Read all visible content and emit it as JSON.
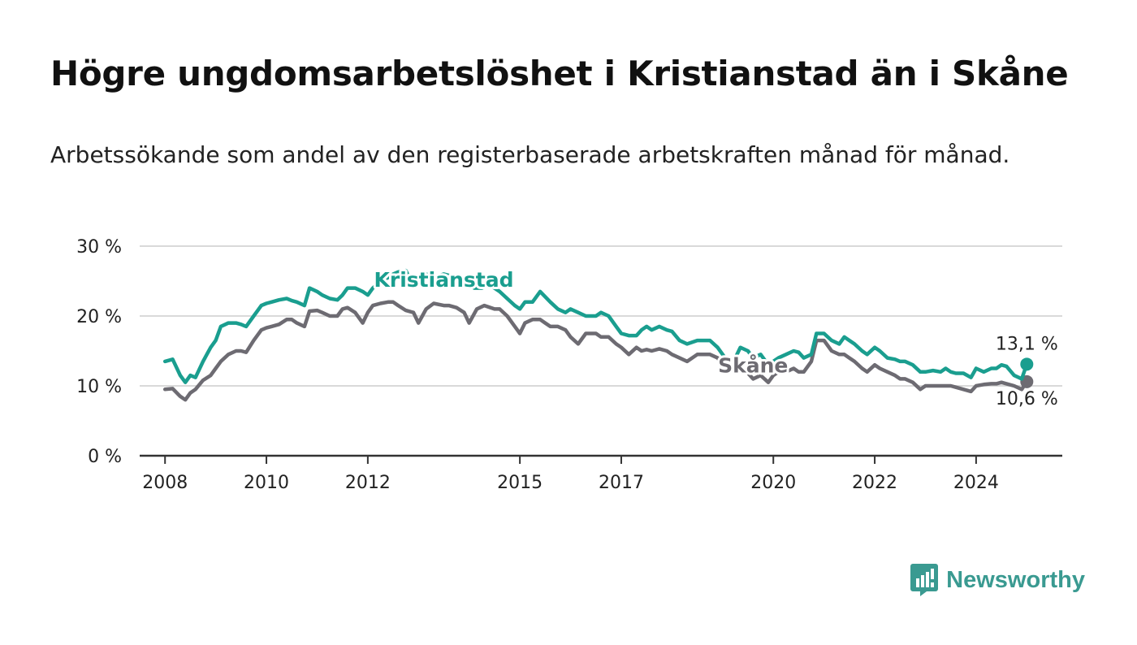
{
  "title": "Högre ungdomsarbetslöshet i Kristianstad än i Skåne",
  "subtitle": "Arbetssökande som andel av den registerbaserade arbetskraften månad för månad.",
  "logo": {
    "text": "Newsworthy",
    "icon": "bar-chart-speech-bubble-icon"
  },
  "colors": {
    "kristianstad": "#1a9e8f",
    "skane": "#6d6b72",
    "grid": "#d9d9d9",
    "axis": "#333333"
  },
  "chart_data": {
    "type": "line",
    "title": "Högre ungdomsarbetslöshet i Kristianstad än i Skåne",
    "subtitle": "Arbetssökande som andel av den registerbaserade arbetskraften månad för månad.",
    "xlabel": "",
    "ylabel": "",
    "x_range": [
      2007.5,
      2025.7
    ],
    "ylim": [
      0,
      30
    ],
    "y_ticks": [
      0,
      10,
      20,
      30
    ],
    "y_tick_labels": [
      "0 %",
      "10 %",
      "20 %",
      "30 %"
    ],
    "x_ticks": [
      2008,
      2010,
      2012,
      2015,
      2017,
      2020,
      2022,
      2024
    ],
    "x_tick_labels": [
      "2008",
      "2010",
      "2012",
      "2015",
      "2017",
      "2020",
      "2022",
      "2024"
    ],
    "grid": "horizontal",
    "legend": "inline labels",
    "series": [
      {
        "name": "Kristianstad",
        "color": "#1a9e8f",
        "end_label": "13,1 %",
        "points": [
          [
            2008.0,
            13.5
          ],
          [
            2008.15,
            13.8
          ],
          [
            2008.3,
            11.5
          ],
          [
            2008.4,
            10.5
          ],
          [
            2008.5,
            11.5
          ],
          [
            2008.6,
            11.2
          ],
          [
            2008.75,
            13.5
          ],
          [
            2008.9,
            15.5
          ],
          [
            2009.0,
            16.5
          ],
          [
            2009.1,
            18.5
          ],
          [
            2009.25,
            19.0
          ],
          [
            2009.4,
            19.0
          ],
          [
            2009.5,
            18.8
          ],
          [
            2009.6,
            18.5
          ],
          [
            2009.75,
            20.0
          ],
          [
            2009.9,
            21.5
          ],
          [
            2010.0,
            21.8
          ],
          [
            2010.1,
            22.0
          ],
          [
            2010.25,
            22.3
          ],
          [
            2010.4,
            22.5
          ],
          [
            2010.5,
            22.2
          ],
          [
            2010.6,
            22.0
          ],
          [
            2010.75,
            21.5
          ],
          [
            2010.85,
            24.0
          ],
          [
            2011.0,
            23.5
          ],
          [
            2011.1,
            23.0
          ],
          [
            2011.25,
            22.5
          ],
          [
            2011.4,
            22.3
          ],
          [
            2011.5,
            23.0
          ],
          [
            2011.6,
            24.0
          ],
          [
            2011.75,
            24.0
          ],
          [
            2011.9,
            23.5
          ],
          [
            2012.0,
            23.0
          ],
          [
            2012.1,
            24.0
          ],
          [
            2012.25,
            25.0
          ],
          [
            2012.4,
            25.5
          ],
          [
            2012.5,
            26.0
          ],
          [
            2012.6,
            26.3
          ],
          [
            2012.75,
            26.5
          ],
          [
            2012.85,
            25.0
          ],
          [
            2013.0,
            25.5
          ],
          [
            2013.15,
            26.0
          ],
          [
            2013.3,
            25.5
          ],
          [
            2013.5,
            26.0
          ],
          [
            2013.6,
            25.8
          ],
          [
            2013.75,
            25.5
          ],
          [
            2013.9,
            25.0
          ],
          [
            2014.0,
            24.5
          ],
          [
            2014.1,
            24.0
          ],
          [
            2014.25,
            24.0
          ],
          [
            2014.4,
            24.5
          ],
          [
            2014.5,
            24.0
          ],
          [
            2014.6,
            23.5
          ],
          [
            2014.75,
            22.5
          ],
          [
            2014.9,
            21.5
          ],
          [
            2015.0,
            21.0
          ],
          [
            2015.1,
            22.0
          ],
          [
            2015.25,
            22.0
          ],
          [
            2015.4,
            23.5
          ],
          [
            2015.6,
            22.0
          ],
          [
            2015.75,
            21.0
          ],
          [
            2015.9,
            20.5
          ],
          [
            2016.0,
            21.0
          ],
          [
            2016.15,
            20.5
          ],
          [
            2016.3,
            20.0
          ],
          [
            2016.5,
            20.0
          ],
          [
            2016.6,
            20.5
          ],
          [
            2016.75,
            20.0
          ],
          [
            2016.9,
            18.5
          ],
          [
            2017.0,
            17.5
          ],
          [
            2017.15,
            17.2
          ],
          [
            2017.3,
            17.2
          ],
          [
            2017.4,
            18.0
          ],
          [
            2017.5,
            18.5
          ],
          [
            2017.6,
            18.0
          ],
          [
            2017.75,
            18.5
          ],
          [
            2017.9,
            18.0
          ],
          [
            2018.0,
            17.8
          ],
          [
            2018.15,
            16.5
          ],
          [
            2018.3,
            16.0
          ],
          [
            2018.5,
            16.5
          ],
          [
            2018.6,
            16.5
          ],
          [
            2018.75,
            16.5
          ],
          [
            2018.9,
            15.5
          ],
          [
            2019.0,
            14.5
          ],
          [
            2019.1,
            13.5
          ],
          [
            2019.25,
            14.0
          ],
          [
            2019.35,
            15.5
          ],
          [
            2019.5,
            15.0
          ],
          [
            2019.6,
            14.0
          ],
          [
            2019.75,
            14.5
          ],
          [
            2019.9,
            13.0
          ],
          [
            2020.0,
            13.5
          ],
          [
            2020.1,
            14.0
          ],
          [
            2020.25,
            14.5
          ],
          [
            2020.4,
            15.0
          ],
          [
            2020.5,
            14.8
          ],
          [
            2020.6,
            14.0
          ],
          [
            2020.75,
            14.5
          ],
          [
            2020.85,
            17.5
          ],
          [
            2021.0,
            17.5
          ],
          [
            2021.15,
            16.5
          ],
          [
            2021.3,
            16.0
          ],
          [
            2021.4,
            17.0
          ],
          [
            2021.5,
            16.5
          ],
          [
            2021.6,
            16.0
          ],
          [
            2021.75,
            15.0
          ],
          [
            2021.85,
            14.5
          ],
          [
            2022.0,
            15.5
          ],
          [
            2022.1,
            15.0
          ],
          [
            2022.25,
            14.0
          ],
          [
            2022.4,
            13.8
          ],
          [
            2022.5,
            13.5
          ],
          [
            2022.6,
            13.5
          ],
          [
            2022.75,
            13.0
          ],
          [
            2022.9,
            12.0
          ],
          [
            2023.0,
            12.0
          ],
          [
            2023.15,
            12.2
          ],
          [
            2023.3,
            12.0
          ],
          [
            2023.4,
            12.5
          ],
          [
            2023.5,
            12.0
          ],
          [
            2023.6,
            11.8
          ],
          [
            2023.75,
            11.8
          ],
          [
            2023.9,
            11.2
          ],
          [
            2024.0,
            12.5
          ],
          [
            2024.15,
            12.0
          ],
          [
            2024.3,
            12.5
          ],
          [
            2024.4,
            12.5
          ],
          [
            2024.5,
            13.0
          ],
          [
            2024.6,
            12.8
          ],
          [
            2024.75,
            11.5
          ],
          [
            2024.9,
            11.0
          ],
          [
            2025.0,
            13.1
          ]
        ]
      },
      {
        "name": "Skåne",
        "color": "#6d6b72",
        "end_label": "10,6 %",
        "points": [
          [
            2008.0,
            9.5
          ],
          [
            2008.15,
            9.6
          ],
          [
            2008.3,
            8.5
          ],
          [
            2008.4,
            8.0
          ],
          [
            2008.5,
            9.0
          ],
          [
            2008.6,
            9.5
          ],
          [
            2008.75,
            10.8
          ],
          [
            2008.9,
            11.5
          ],
          [
            2009.0,
            12.5
          ],
          [
            2009.1,
            13.5
          ],
          [
            2009.25,
            14.5
          ],
          [
            2009.4,
            15.0
          ],
          [
            2009.5,
            15.0
          ],
          [
            2009.6,
            14.8
          ],
          [
            2009.75,
            16.5
          ],
          [
            2009.9,
            18.0
          ],
          [
            2010.0,
            18.3
          ],
          [
            2010.1,
            18.5
          ],
          [
            2010.25,
            18.8
          ],
          [
            2010.4,
            19.5
          ],
          [
            2010.5,
            19.5
          ],
          [
            2010.6,
            19.0
          ],
          [
            2010.75,
            18.5
          ],
          [
            2010.85,
            20.7
          ],
          [
            2011.0,
            20.8
          ],
          [
            2011.1,
            20.5
          ],
          [
            2011.25,
            20.0
          ],
          [
            2011.4,
            20.0
          ],
          [
            2011.5,
            21.0
          ],
          [
            2011.6,
            21.2
          ],
          [
            2011.75,
            20.5
          ],
          [
            2011.9,
            19.0
          ],
          [
            2012.0,
            20.5
          ],
          [
            2012.1,
            21.5
          ],
          [
            2012.25,
            21.8
          ],
          [
            2012.4,
            22.0
          ],
          [
            2012.5,
            22.0
          ],
          [
            2012.6,
            21.5
          ],
          [
            2012.75,
            20.8
          ],
          [
            2012.9,
            20.5
          ],
          [
            2013.0,
            19.0
          ],
          [
            2013.15,
            21.0
          ],
          [
            2013.3,
            21.8
          ],
          [
            2013.5,
            21.5
          ],
          [
            2013.6,
            21.5
          ],
          [
            2013.75,
            21.2
          ],
          [
            2013.9,
            20.5
          ],
          [
            2014.0,
            19.0
          ],
          [
            2014.15,
            21.0
          ],
          [
            2014.3,
            21.5
          ],
          [
            2014.5,
            21.0
          ],
          [
            2014.6,
            21.0
          ],
          [
            2014.75,
            20.0
          ],
          [
            2014.9,
            18.5
          ],
          [
            2015.0,
            17.5
          ],
          [
            2015.1,
            19.0
          ],
          [
            2015.25,
            19.5
          ],
          [
            2015.4,
            19.5
          ],
          [
            2015.5,
            19.0
          ],
          [
            2015.6,
            18.5
          ],
          [
            2015.75,
            18.5
          ],
          [
            2015.9,
            18.0
          ],
          [
            2016.0,
            17.0
          ],
          [
            2016.15,
            16.0
          ],
          [
            2016.3,
            17.5
          ],
          [
            2016.5,
            17.5
          ],
          [
            2016.6,
            17.0
          ],
          [
            2016.75,
            17.0
          ],
          [
            2016.9,
            16.0
          ],
          [
            2017.0,
            15.5
          ],
          [
            2017.15,
            14.5
          ],
          [
            2017.3,
            15.5
          ],
          [
            2017.4,
            15.0
          ],
          [
            2017.5,
            15.2
          ],
          [
            2017.6,
            15.0
          ],
          [
            2017.75,
            15.3
          ],
          [
            2017.9,
            15.0
          ],
          [
            2018.0,
            14.5
          ],
          [
            2018.15,
            14.0
          ],
          [
            2018.3,
            13.5
          ],
          [
            2018.5,
            14.5
          ],
          [
            2018.6,
            14.5
          ],
          [
            2018.75,
            14.5
          ],
          [
            2018.9,
            14.0
          ],
          [
            2019.0,
            13.0
          ],
          [
            2019.1,
            12.5
          ],
          [
            2019.25,
            12.5
          ],
          [
            2019.4,
            12.0
          ],
          [
            2019.5,
            11.8
          ],
          [
            2019.6,
            11.0
          ],
          [
            2019.75,
            11.5
          ],
          [
            2019.9,
            10.5
          ],
          [
            2020.0,
            11.5
          ],
          [
            2020.1,
            12.0
          ],
          [
            2020.25,
            12.0
          ],
          [
            2020.4,
            12.5
          ],
          [
            2020.5,
            12.0
          ],
          [
            2020.6,
            12.0
          ],
          [
            2020.75,
            13.5
          ],
          [
            2020.85,
            16.5
          ],
          [
            2021.0,
            16.5
          ],
          [
            2021.15,
            15.0
          ],
          [
            2021.3,
            14.5
          ],
          [
            2021.4,
            14.5
          ],
          [
            2021.5,
            14.0
          ],
          [
            2021.6,
            13.5
          ],
          [
            2021.75,
            12.5
          ],
          [
            2021.85,
            12.0
          ],
          [
            2022.0,
            13.0
          ],
          [
            2022.1,
            12.5
          ],
          [
            2022.25,
            12.0
          ],
          [
            2022.4,
            11.5
          ],
          [
            2022.5,
            11.0
          ],
          [
            2022.6,
            11.0
          ],
          [
            2022.75,
            10.5
          ],
          [
            2022.9,
            9.5
          ],
          [
            2023.0,
            10.0
          ],
          [
            2023.15,
            10.0
          ],
          [
            2023.3,
            10.0
          ],
          [
            2023.4,
            10.0
          ],
          [
            2023.5,
            10.0
          ],
          [
            2023.6,
            9.8
          ],
          [
            2023.75,
            9.5
          ],
          [
            2023.9,
            9.2
          ],
          [
            2024.0,
            10.0
          ],
          [
            2024.15,
            10.2
          ],
          [
            2024.3,
            10.3
          ],
          [
            2024.4,
            10.3
          ],
          [
            2024.5,
            10.5
          ],
          [
            2024.6,
            10.3
          ],
          [
            2024.75,
            10.0
          ],
          [
            2024.9,
            9.5
          ],
          [
            2025.0,
            10.6
          ]
        ]
      }
    ],
    "inline_labels": [
      {
        "series": "Kristianstad",
        "text": "Kristianstad",
        "x": 2013.5,
        "y": 24.2
      },
      {
        "series": "Skåne",
        "text": "Skåne",
        "x": 2019.6,
        "y": 11.9
      }
    ]
  }
}
